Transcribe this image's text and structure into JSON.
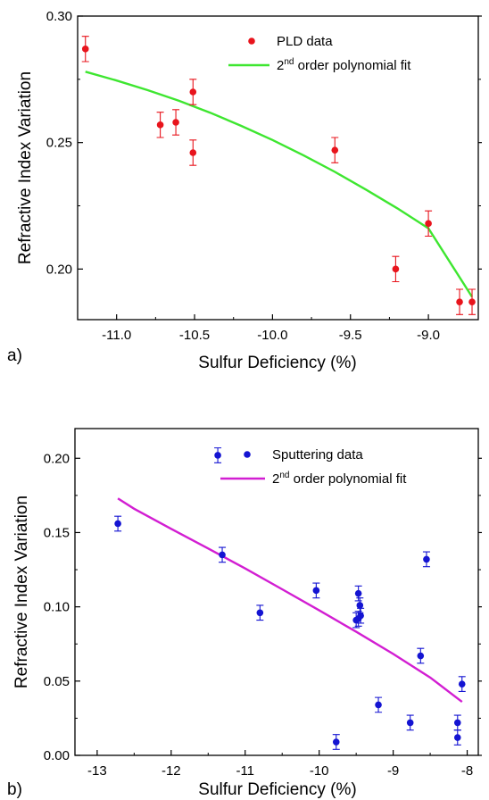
{
  "chart_data": [
    {
      "type": "scatter",
      "panel_label": "a)",
      "xlabel": "Sulfur Deficiency (%)",
      "ylabel": "Refractive Index Variation",
      "xlim": [
        -11.25,
        -8.68
      ],
      "ylim": [
        0.18,
        0.3
      ],
      "xticks": [
        -11.0,
        -10.5,
        -10.0,
        -9.5,
        -9.0
      ],
      "xtick_labels": [
        "-11.0",
        "-10.5",
        "-10.0",
        "-9.5",
        "-9.0"
      ],
      "yticks": [
        0.2,
        0.25,
        0.3
      ],
      "ytick_labels": [
        "0.20",
        "0.25",
        "0.30"
      ],
      "legend": [
        "PLD data",
        "2nd order polynomial fit"
      ],
      "legend_placement": "top-right",
      "series": [
        {
          "name": "PLD data",
          "kind": "points",
          "color": "#e8141c",
          "x": [
            -11.2,
            -10.72,
            -10.62,
            -10.51,
            -10.51,
            -9.6,
            -9.21,
            -9.0,
            -8.8,
            -8.72
          ],
          "y": [
            0.287,
            0.257,
            0.258,
            0.27,
            0.246,
            0.247,
            0.2,
            0.218,
            0.187,
            0.187
          ],
          "err": [
            0.005,
            0.005,
            0.005,
            0.005,
            0.005,
            0.005,
            0.005,
            0.005,
            0.005,
            0.005
          ]
        },
        {
          "name": "2nd order polynomial fit",
          "kind": "line",
          "color": "#3ee630",
          "x": [
            -11.2,
            -11.0,
            -10.8,
            -10.6,
            -10.4,
            -10.2,
            -10.0,
            -9.8,
            -9.6,
            -9.4,
            -9.2,
            -9.0,
            -8.72
          ],
          "y": [
            0.278,
            0.2745,
            0.2707,
            0.2665,
            0.2618,
            0.2566,
            0.251,
            0.2449,
            0.2384,
            0.2314,
            0.224,
            0.2161,
            0.189
          ]
        }
      ]
    },
    {
      "type": "scatter",
      "panel_label": "b)",
      "xlabel": "Sulfur Deficiency (%)",
      "ylabel": "Refractive Index Variation",
      "xlim": [
        -13.3,
        -7.85
      ],
      "ylim": [
        0.0,
        0.22
      ],
      "xticks": [
        -13,
        -12,
        -11,
        -10,
        -9,
        -8
      ],
      "xtick_labels": [
        "-13",
        "-12",
        "-11",
        "-10",
        "-9",
        "-8"
      ],
      "yticks": [
        0.0,
        0.05,
        0.1,
        0.15,
        0.2
      ],
      "ytick_labels": [
        "0.00",
        "0.05",
        "0.10",
        "0.15",
        "0.20"
      ],
      "legend": [
        "Sputtering data",
        "2nd order polynomial fit"
      ],
      "legend_placement": "top-right",
      "series": [
        {
          "name": "Sputtering data",
          "kind": "points",
          "color": "#1414d2",
          "x": [
            -12.72,
            -11.37,
            -11.31,
            -10.8,
            -10.04,
            -9.77,
            -9.5,
            -9.47,
            -9.47,
            -9.45,
            -9.44,
            -9.2,
            -8.77,
            -8.63,
            -8.55,
            -8.13,
            -8.13,
            -8.07
          ],
          "y": [
            0.156,
            0.202,
            0.135,
            0.096,
            0.111,
            0.009,
            0.091,
            0.109,
            0.092,
            0.101,
            0.094,
            0.034,
            0.022,
            0.067,
            0.132,
            0.022,
            0.012,
            0.048
          ],
          "err": [
            0.005,
            0.005,
            0.005,
            0.005,
            0.005,
            0.005,
            0.005,
            0.005,
            0.005,
            0.005,
            0.005,
            0.005,
            0.005,
            0.005,
            0.005,
            0.005,
            0.005,
            0.005
          ]
        },
        {
          "name": "2nd order polynomial fit",
          "kind": "line",
          "color": "#d21ed2",
          "x": [
            -12.72,
            -12.5,
            -12.0,
            -11.5,
            -11.0,
            -10.5,
            -10.0,
            -9.5,
            -9.0,
            -8.5,
            -8.07
          ],
          "y": [
            0.173,
            0.166,
            0.1525,
            0.1393,
            0.1258,
            0.1118,
            0.0976,
            0.0832,
            0.0683,
            0.0524,
            0.036
          ]
        }
      ]
    }
  ]
}
